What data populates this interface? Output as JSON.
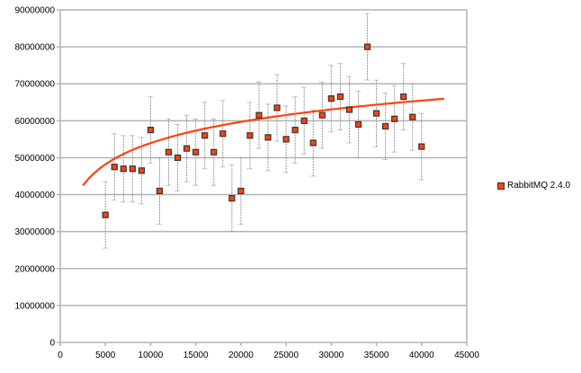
{
  "chart_data": {
    "type": "scatter",
    "title": "",
    "xlabel": "",
    "ylabel": "",
    "xlim": [
      0,
      45000
    ],
    "ylim": [
      0,
      90000000
    ],
    "x_ticks": [
      "0",
      "5000",
      "10000",
      "15000",
      "20000",
      "25000",
      "30000",
      "35000",
      "40000",
      "45000"
    ],
    "y_ticks": [
      "0",
      "10000000",
      "20000000",
      "30000000",
      "40000000",
      "50000000",
      "60000000",
      "70000000",
      "80000000",
      "90000000"
    ],
    "grid": "horizontal",
    "legend_position": "right",
    "series": [
      {
        "name": "RabbitMQ 2.4.0",
        "color": "#ff420e",
        "x": [
          5000,
          6000,
          7000,
          8000,
          9000,
          10000,
          11000,
          12000,
          13000,
          14000,
          15000,
          16000,
          17000,
          18000,
          19000,
          20000,
          21000,
          22000,
          23000,
          24000,
          25000,
          26000,
          27000,
          28000,
          29000,
          30000,
          31000,
          32000,
          33000,
          34000,
          35000,
          36000,
          37000,
          38000,
          39000,
          40000
        ],
        "y": [
          34500000,
          47500000,
          47000000,
          47000000,
          46500000,
          57500000,
          41000000,
          51500000,
          50000000,
          52500000,
          51500000,
          56000000,
          51500000,
          56500000,
          39000000,
          41000000,
          56000000,
          61500000,
          55500000,
          63500000,
          55000000,
          57500000,
          60000000,
          54000000,
          61500000,
          66000000,
          66500000,
          63000000,
          59000000,
          80000000,
          62000000,
          58500000,
          60500000,
          66500000,
          61000000,
          53000000
        ],
        "error": 9000000,
        "trendline": {
          "type": "logarithmic",
          "x_range": [
            2500,
            42500
          ],
          "a": -22400000,
          "b": 8290000
        }
      }
    ]
  }
}
